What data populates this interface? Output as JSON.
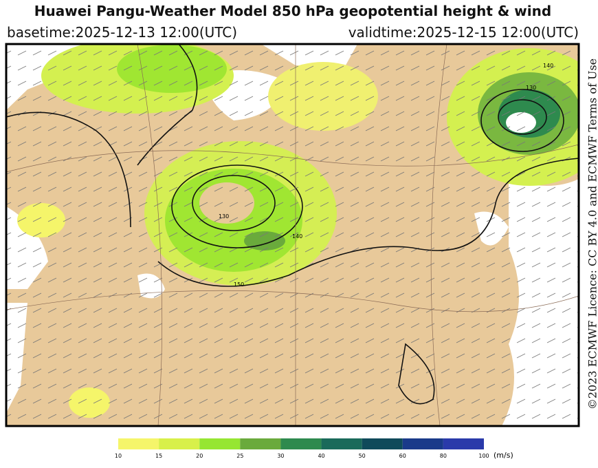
{
  "header": {
    "title": "Huawei Pangu-Weather Model 850 hPa geopotential height & wind",
    "basetime": "basetime:2025-12-13 12:00(UTC)",
    "validtime": "validtime:2025-12-15 12:00(UTC)"
  },
  "licence": "©2023 ECMWF Licence: CC BY 4.0 and ECMWF Terms of Use",
  "map": {
    "contour_labels": [
      "130",
      "140",
      "150",
      "130",
      "140"
    ]
  },
  "colorbar": {
    "colors": [
      "#f5f56a",
      "#d8f04a",
      "#96e632",
      "#6aaa3c",
      "#2e8a4e",
      "#1a6a5a",
      "#0f4a5a",
      "#1a3a8a",
      "#2a3aaa"
    ],
    "labels": [
      10,
      15,
      20,
      25,
      30,
      40,
      50,
      60,
      80,
      100
    ],
    "unit": "(m/s)"
  }
}
